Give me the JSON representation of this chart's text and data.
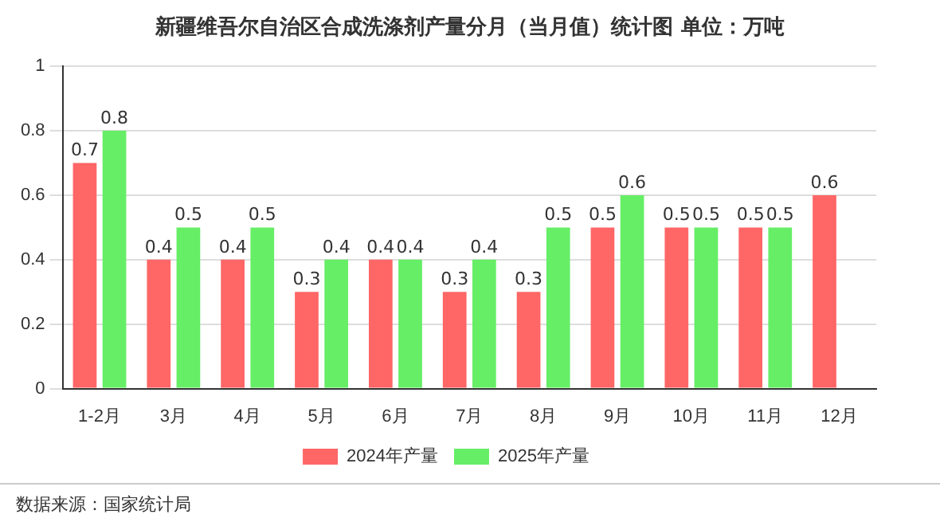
{
  "chart_data": {
    "type": "bar",
    "title": "新疆维吾尔自治区合成洗涤剂产量分月（当月值）统计图 单位：万吨",
    "categories": [
      "1-2月",
      "3月",
      "4月",
      "5月",
      "6月",
      "7月",
      "8月",
      "9月",
      "10月",
      "11月",
      "12月"
    ],
    "series": [
      {
        "name": "2024年产量",
        "color": "#ff6666",
        "values": [
          0.7,
          0.4,
          0.4,
          0.3,
          0.4,
          0.3,
          0.3,
          0.5,
          0.5,
          0.5,
          0.6
        ]
      },
      {
        "name": "2025年产量",
        "color": "#66ee66",
        "values": [
          0.8,
          0.5,
          0.5,
          0.4,
          0.4,
          0.4,
          0.5,
          0.6,
          0.5,
          0.5,
          null
        ]
      }
    ],
    "ylim": [
      0,
      1
    ],
    "yticks": [
      0,
      0.2,
      0.4,
      0.6,
      0.8,
      1
    ],
    "grid": "y",
    "legend": "bottom",
    "data_labels": true,
    "annotations": [
      "数据来源：国家统计局"
    ]
  }
}
